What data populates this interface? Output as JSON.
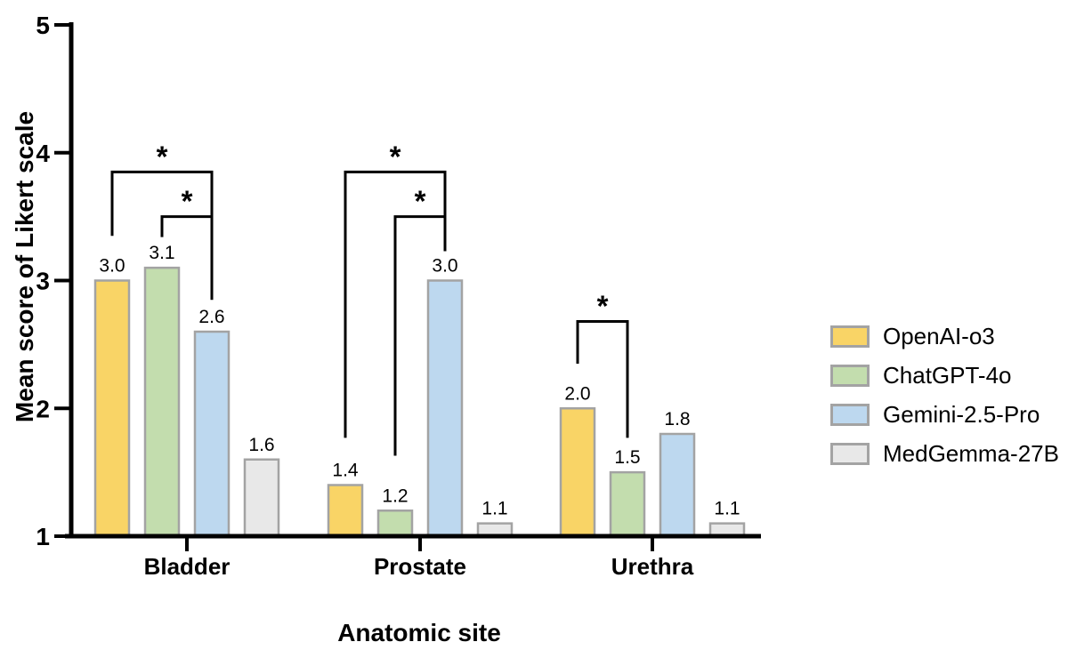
{
  "figure": {
    "background": "#FFFFFF",
    "axis_color": "#000000",
    "text_color": "#000000"
  },
  "chart_data": {
    "type": "bar",
    "title": "",
    "xlabel": "Anatomic site",
    "ylabel": "Mean score of Likert scale",
    "ylim": [
      1,
      5
    ],
    "yticks": [
      "1",
      "2",
      "3",
      "4",
      "5"
    ],
    "grid": false,
    "legend_position": "right",
    "categories": [
      "Bladder",
      "Prostate",
      "Urethra"
    ],
    "series": [
      {
        "name": "OpenAI-o3",
        "color": "#F9D466",
        "values": [
          3.0,
          1.4,
          2.0
        ],
        "value_labels": [
          "3.0",
          "1.4",
          "2.0"
        ]
      },
      {
        "name": "ChatGPT-4o",
        "color": "#C3DDAE",
        "values": [
          3.1,
          1.2,
          1.5
        ],
        "value_labels": [
          "3.1",
          "1.2",
          "1.5"
        ]
      },
      {
        "name": "Gemini-2.5-Pro",
        "color": "#BDD8EF",
        "values": [
          2.6,
          3.0,
          1.8
        ],
        "value_labels": [
          "2.6",
          "3.0",
          "1.8"
        ]
      },
      {
        "name": "MedGemma-27B",
        "color": "#E8E8E8",
        "values": [
          1.6,
          1.1,
          1.1
        ],
        "value_labels": [
          "1.6",
          "1.1",
          "1.1"
        ]
      }
    ],
    "bar_border_color": "#A3A3A3",
    "significance_brackets": [
      {
        "category": "Bladder",
        "from_series": "OpenAI-o3",
        "to_series": "Gemini-2.5-Pro",
        "label": "*",
        "bar_y": 3.85,
        "leg_from_end": 3.35,
        "leg_to_end": 2.85
      },
      {
        "category": "Bladder",
        "from_series": "ChatGPT-4o",
        "to_series": "Gemini-2.5-Pro",
        "label": "*",
        "bar_y": 3.5,
        "leg_from_end": 3.34,
        "leg_to_end": 2.85
      },
      {
        "category": "Prostate",
        "from_series": "OpenAI-o3",
        "to_series": "Gemini-2.5-Pro",
        "label": "*",
        "bar_y": 3.85,
        "leg_from_end": 1.77,
        "leg_to_end": 3.23
      },
      {
        "category": "Prostate",
        "from_series": "ChatGPT-4o",
        "to_series": "Gemini-2.5-Pro",
        "label": "*",
        "bar_y": 3.5,
        "leg_from_end": 1.63,
        "leg_to_end": 3.23
      },
      {
        "category": "Urethra",
        "from_series": "OpenAI-o3",
        "to_series": "ChatGPT-4o",
        "label": "*",
        "bar_y": 2.68,
        "leg_from_end": 2.35,
        "leg_to_end": 1.77
      }
    ]
  }
}
